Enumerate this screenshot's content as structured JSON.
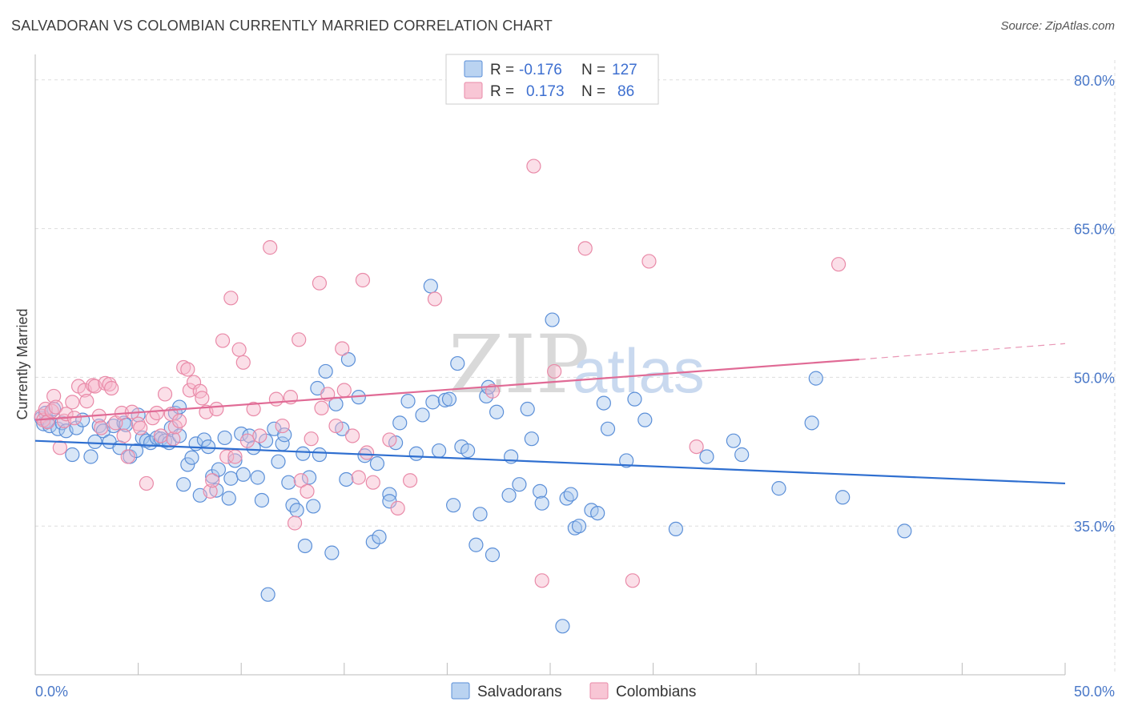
{
  "title": "SALVADORAN VS COLOMBIAN CURRENTLY MARRIED CORRELATION CHART",
  "source": "Source: ZipAtlas.com",
  "watermark": {
    "zip": "ZIP",
    "atlas": "atlas"
  },
  "colors": {
    "blue_fill": "#a9c8ee",
    "blue_stroke": "#5b8fd8",
    "blue_line": "#2f6fd0",
    "pink_fill": "#f6b8cb",
    "pink_stroke": "#e98aa8",
    "pink_line": "#e06a95",
    "tick_label": "#4a78c8",
    "grid": "#dddddd"
  },
  "legend": {
    "r_label": "R =",
    "n_label": "N =",
    "rows": [
      {
        "r": "-0.176",
        "n": "127",
        "color": "#a9c8ee",
        "stroke": "#5b8fd8"
      },
      {
        "r": "0.173",
        "n": "86",
        "color": "#f6b8cb",
        "stroke": "#e98aa8"
      }
    ]
  },
  "bottom_legend": [
    {
      "label": "Salvadorans",
      "color": "#a9c8ee",
      "stroke": "#5b8fd8"
    },
    {
      "label": "Colombians",
      "color": "#f6b8cb",
      "stroke": "#e98aa8"
    }
  ],
  "chart_data": {
    "type": "scatter",
    "title": "SALVADORAN VS COLOMBIAN CURRENTLY MARRIED CORRELATION CHART",
    "xlabel": "",
    "ylabel": "Currently Married",
    "xlim": [
      0,
      50
    ],
    "ylim": [
      20,
      82
    ],
    "x_tick_labels": [
      {
        "value": 0,
        "label": "0.0%"
      },
      {
        "value": 50,
        "label": "50.0%"
      }
    ],
    "y_tick_labels": [
      {
        "value": 35,
        "label": "35.0%"
      },
      {
        "value": 50,
        "label": "50.0%"
      },
      {
        "value": 65,
        "label": "65.0%"
      },
      {
        "value": 80,
        "label": "80.0%"
      }
    ],
    "grid": true,
    "legend_position": "top-center",
    "series": [
      {
        "name": "Salvadorans",
        "r": -0.176,
        "n": 127,
        "trend": {
          "x0": 0,
          "y0": 43.6,
          "x1": 50,
          "y1": 39.3
        },
        "points": [
          [
            0.3,
            45.9
          ],
          [
            0.4,
            45.3
          ],
          [
            0.5,
            46.4
          ],
          [
            0.6,
            45.6
          ],
          [
            0.7,
            45.1
          ],
          [
            0.9,
            46.8
          ],
          [
            1.1,
            44.8
          ],
          [
            1.3,
            45.4
          ],
          [
            1.5,
            44.6
          ],
          [
            1.8,
            42.2
          ],
          [
            2.0,
            44.9
          ],
          [
            2.3,
            45.7
          ],
          [
            2.7,
            42.0
          ],
          [
            2.9,
            43.5
          ],
          [
            3.1,
            45.1
          ],
          [
            3.3,
            44.6
          ],
          [
            3.6,
            43.5
          ],
          [
            3.8,
            45.1
          ],
          [
            4.1,
            42.9
          ],
          [
            4.3,
            45.4
          ],
          [
            4.4,
            45.2
          ],
          [
            4.6,
            42.0
          ],
          [
            4.9,
            42.6
          ],
          [
            5.0,
            46.2
          ],
          [
            5.2,
            43.9
          ],
          [
            5.4,
            43.6
          ],
          [
            5.6,
            43.4
          ],
          [
            5.9,
            43.9
          ],
          [
            6.1,
            43.8
          ],
          [
            6.3,
            43.6
          ],
          [
            6.5,
            43.4
          ],
          [
            6.6,
            44.9
          ],
          [
            6.8,
            46.4
          ],
          [
            7.0,
            47.0
          ],
          [
            7.0,
            44.1
          ],
          [
            7.2,
            39.2
          ],
          [
            7.4,
            41.2
          ],
          [
            7.6,
            41.9
          ],
          [
            7.8,
            43.3
          ],
          [
            8.0,
            38.1
          ],
          [
            8.2,
            43.7
          ],
          [
            8.4,
            43.0
          ],
          [
            8.6,
            40.0
          ],
          [
            8.8,
            38.6
          ],
          [
            8.9,
            40.7
          ],
          [
            9.2,
            43.9
          ],
          [
            9.4,
            37.8
          ],
          [
            9.5,
            39.8
          ],
          [
            9.7,
            41.6
          ],
          [
            10.0,
            44.3
          ],
          [
            10.1,
            40.2
          ],
          [
            10.4,
            44.1
          ],
          [
            10.6,
            42.9
          ],
          [
            10.8,
            39.9
          ],
          [
            11.0,
            37.6
          ],
          [
            11.2,
            43.6
          ],
          [
            11.3,
            28.1
          ],
          [
            11.6,
            44.8
          ],
          [
            11.8,
            41.5
          ],
          [
            12.0,
            43.3
          ],
          [
            12.1,
            44.2
          ],
          [
            12.3,
            39.4
          ],
          [
            12.5,
            37.1
          ],
          [
            12.7,
            36.6
          ],
          [
            13.0,
            42.3
          ],
          [
            13.1,
            33.0
          ],
          [
            13.3,
            39.9
          ],
          [
            13.5,
            37.0
          ],
          [
            13.7,
            48.9
          ],
          [
            13.8,
            42.2
          ],
          [
            14.1,
            50.6
          ],
          [
            14.4,
            32.3
          ],
          [
            14.6,
            47.3
          ],
          [
            14.9,
            44.8
          ],
          [
            15.1,
            39.7
          ],
          [
            15.2,
            51.8
          ],
          [
            15.7,
            48.0
          ],
          [
            16.0,
            42.1
          ],
          [
            16.4,
            33.4
          ],
          [
            16.6,
            41.3
          ],
          [
            16.7,
            33.9
          ],
          [
            17.2,
            38.2
          ],
          [
            17.2,
            37.5
          ],
          [
            17.5,
            43.4
          ],
          [
            17.7,
            45.4
          ],
          [
            18.1,
            47.6
          ],
          [
            18.5,
            42.3
          ],
          [
            18.8,
            46.2
          ],
          [
            19.2,
            59.2
          ],
          [
            19.3,
            47.5
          ],
          [
            19.6,
            42.6
          ],
          [
            19.9,
            47.7
          ],
          [
            20.1,
            47.8
          ],
          [
            20.3,
            37.1
          ],
          [
            20.5,
            51.4
          ],
          [
            20.7,
            43.0
          ],
          [
            21.0,
            42.6
          ],
          [
            21.4,
            33.1
          ],
          [
            21.6,
            36.2
          ],
          [
            21.9,
            48.1
          ],
          [
            22.0,
            49.0
          ],
          [
            22.2,
            32.1
          ],
          [
            22.4,
            46.5
          ],
          [
            23.0,
            38.1
          ],
          [
            23.1,
            42.0
          ],
          [
            23.5,
            39.2
          ],
          [
            23.9,
            46.8
          ],
          [
            24.1,
            43.8
          ],
          [
            24.5,
            38.5
          ],
          [
            24.6,
            37.3
          ],
          [
            25.1,
            55.8
          ],
          [
            25.6,
            24.9
          ],
          [
            25.8,
            37.8
          ],
          [
            26.0,
            38.2
          ],
          [
            26.2,
            34.8
          ],
          [
            26.4,
            35.0
          ],
          [
            27.0,
            36.6
          ],
          [
            27.3,
            36.3
          ],
          [
            27.6,
            47.4
          ],
          [
            27.8,
            44.8
          ],
          [
            28.7,
            41.6
          ],
          [
            29.1,
            47.8
          ],
          [
            29.6,
            45.7
          ],
          [
            31.1,
            34.7
          ],
          [
            32.6,
            42.0
          ],
          [
            33.9,
            43.6
          ],
          [
            34.3,
            42.2
          ],
          [
            36.1,
            38.8
          ],
          [
            37.7,
            45.4
          ],
          [
            37.9,
            49.9
          ],
          [
            39.2,
            37.9
          ],
          [
            42.2,
            34.5
          ]
        ]
      },
      {
        "name": "Colombians",
        "r": 0.173,
        "n": 86,
        "trend": {
          "x0": 0,
          "y0": 45.7,
          "x1": 40,
          "y1": 51.8,
          "dashed_to_x": 50,
          "dashed_to_y": 53.4
        },
        "points": [
          [
            0.3,
            46.1
          ],
          [
            0.4,
            45.7
          ],
          [
            0.5,
            46.8
          ],
          [
            0.6,
            45.5
          ],
          [
            0.8,
            46.6
          ],
          [
            0.9,
            48.1
          ],
          [
            1.0,
            47.0
          ],
          [
            1.2,
            42.9
          ],
          [
            1.4,
            45.6
          ],
          [
            1.5,
            46.3
          ],
          [
            1.8,
            47.5
          ],
          [
            1.9,
            45.9
          ],
          [
            2.1,
            49.1
          ],
          [
            2.4,
            48.7
          ],
          [
            2.5,
            47.6
          ],
          [
            2.8,
            49.2
          ],
          [
            2.9,
            49.1
          ],
          [
            3.1,
            46.1
          ],
          [
            3.2,
            44.9
          ],
          [
            3.4,
            49.4
          ],
          [
            3.6,
            49.3
          ],
          [
            3.7,
            48.9
          ],
          [
            3.9,
            45.4
          ],
          [
            4.2,
            46.4
          ],
          [
            4.3,
            44.1
          ],
          [
            4.5,
            42.0
          ],
          [
            4.7,
            46.5
          ],
          [
            5.0,
            45.3
          ],
          [
            5.1,
            44.9
          ],
          [
            5.4,
            39.3
          ],
          [
            5.7,
            45.9
          ],
          [
            5.9,
            46.4
          ],
          [
            6.1,
            44.1
          ],
          [
            6.3,
            48.3
          ],
          [
            6.6,
            46.3
          ],
          [
            6.7,
            43.8
          ],
          [
            6.8,
            45.0
          ],
          [
            7.0,
            45.6
          ],
          [
            7.2,
            51.0
          ],
          [
            7.4,
            50.8
          ],
          [
            7.5,
            48.7
          ],
          [
            7.7,
            49.5
          ],
          [
            8.0,
            48.6
          ],
          [
            8.1,
            47.9
          ],
          [
            8.3,
            46.5
          ],
          [
            8.5,
            38.5
          ],
          [
            8.6,
            39.6
          ],
          [
            8.8,
            46.8
          ],
          [
            9.1,
            53.7
          ],
          [
            9.3,
            42.0
          ],
          [
            9.5,
            58.0
          ],
          [
            9.7,
            42.0
          ],
          [
            9.9,
            52.8
          ],
          [
            10.1,
            51.5
          ],
          [
            10.3,
            43.6
          ],
          [
            10.6,
            46.8
          ],
          [
            10.9,
            44.1
          ],
          [
            11.4,
            63.1
          ],
          [
            11.7,
            47.8
          ],
          [
            12.0,
            45.1
          ],
          [
            12.4,
            48.0
          ],
          [
            12.6,
            35.3
          ],
          [
            12.8,
            53.8
          ],
          [
            12.9,
            39.6
          ],
          [
            13.2,
            38.5
          ],
          [
            13.4,
            43.8
          ],
          [
            13.8,
            59.5
          ],
          [
            13.9,
            46.9
          ],
          [
            14.2,
            48.3
          ],
          [
            14.6,
            45.1
          ],
          [
            14.9,
            52.9
          ],
          [
            15.0,
            48.7
          ],
          [
            15.4,
            44.1
          ],
          [
            15.7,
            39.9
          ],
          [
            15.9,
            59.8
          ],
          [
            16.1,
            42.4
          ],
          [
            16.4,
            39.4
          ],
          [
            17.2,
            43.7
          ],
          [
            17.6,
            36.8
          ],
          [
            18.2,
            39.6
          ],
          [
            19.4,
            57.9
          ],
          [
            22.2,
            48.6
          ],
          [
            24.2,
            71.3
          ],
          [
            24.6,
            29.5
          ],
          [
            25.2,
            50.6
          ],
          [
            26.7,
            63.0
          ],
          [
            29.0,
            29.5
          ],
          [
            29.8,
            61.7
          ],
          [
            32.1,
            43.0
          ],
          [
            39.0,
            61.4
          ]
        ]
      }
    ]
  }
}
